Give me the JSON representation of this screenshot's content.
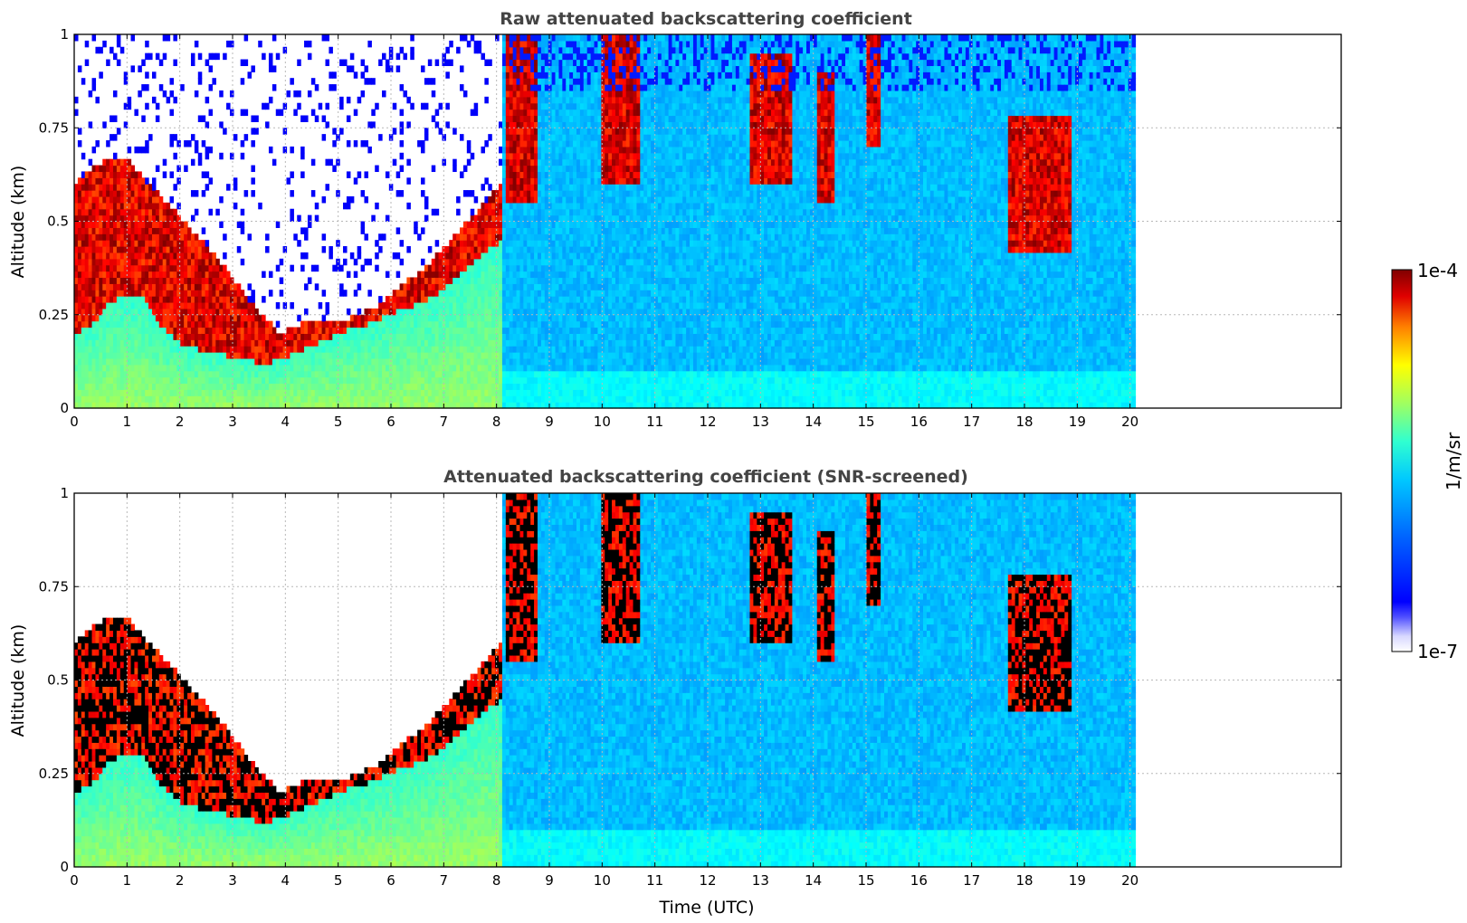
{
  "chart_data": [
    {
      "type": "heatmap",
      "title": "Raw attenuated backscattering coefficient",
      "xlabel": "",
      "ylabel": "Altitude (km)",
      "xlim": [
        0,
        24
      ],
      "ylim": [
        0,
        1
      ],
      "x_ticks": [
        "0",
        "1",
        "2",
        "3",
        "4",
        "5",
        "6",
        "7",
        "8",
        "9",
        "10",
        "11",
        "12",
        "13",
        "14",
        "15",
        "16",
        "17",
        "18",
        "19",
        "20"
      ],
      "y_ticks": [
        "0",
        "0.25",
        "0.5",
        "0.75",
        "1"
      ],
      "data_extent_hours": [
        0,
        20.1
      ],
      "grid": true,
      "screened": false,
      "layer_top_km": [
        0.6,
        0.64,
        0.67,
        0.67,
        0.62,
        0.57,
        0.52,
        0.47,
        0.42,
        0.37,
        0.3,
        0.25,
        0.2,
        0.22,
        0.24,
        0.24,
        0.24,
        0.26,
        0.28,
        0.32,
        0.36,
        0.4,
        0.45,
        0.5,
        0.55,
        0.6
      ],
      "layer_bottom_km": [
        0.2,
        0.22,
        0.28,
        0.3,
        0.3,
        0.22,
        0.18,
        0.16,
        0.15,
        0.14,
        0.13,
        0.12,
        0.13,
        0.15,
        0.17,
        0.19,
        0.21,
        0.22,
        0.24,
        0.26,
        0.28,
        0.3,
        0.34,
        0.38,
        0.42,
        0.45
      ],
      "high_cloud_segments": [
        [
          8.2,
          8.8,
          0.55,
          1.0
        ],
        [
          10.0,
          10.7,
          0.6,
          1.0
        ],
        [
          12.8,
          13.6,
          0.6,
          0.95
        ],
        [
          14.1,
          14.4,
          0.55,
          0.9
        ],
        [
          15.0,
          15.3,
          0.7,
          1.0
        ],
        [
          17.7,
          18.9,
          0.42,
          0.78
        ]
      ]
    },
    {
      "type": "heatmap",
      "title": "Attenuated backscattering coefficient (SNR-screened)",
      "xlabel": "Time (UTC)",
      "ylabel": "Altitude (km)",
      "xlim": [
        0,
        24
      ],
      "ylim": [
        0,
        1
      ],
      "x_ticks": [
        "0",
        "1",
        "2",
        "3",
        "4",
        "5",
        "6",
        "7",
        "8",
        "9",
        "10",
        "11",
        "12",
        "13",
        "14",
        "15",
        "16",
        "17",
        "18",
        "19",
        "20"
      ],
      "y_ticks": [
        "0",
        "0.25",
        "0.5",
        "0.75",
        "1"
      ],
      "data_extent_hours": [
        0,
        20.1
      ],
      "grid": true,
      "screened": true,
      "layer_top_km": [
        0.6,
        0.64,
        0.67,
        0.67,
        0.62,
        0.57,
        0.52,
        0.47,
        0.42,
        0.37,
        0.3,
        0.25,
        0.2,
        0.22,
        0.24,
        0.24,
        0.24,
        0.26,
        0.28,
        0.32,
        0.36,
        0.4,
        0.45,
        0.5,
        0.55,
        0.6
      ],
      "layer_bottom_km": [
        0.2,
        0.22,
        0.28,
        0.3,
        0.3,
        0.22,
        0.18,
        0.16,
        0.15,
        0.14,
        0.13,
        0.12,
        0.13,
        0.15,
        0.17,
        0.19,
        0.21,
        0.22,
        0.24,
        0.26,
        0.28,
        0.3,
        0.34,
        0.38,
        0.42,
        0.45
      ],
      "high_cloud_segments": [
        [
          8.2,
          8.8,
          0.55,
          1.0
        ],
        [
          10.0,
          10.7,
          0.6,
          1.0
        ],
        [
          12.8,
          13.6,
          0.6,
          0.95
        ],
        [
          14.1,
          14.4,
          0.55,
          0.9
        ],
        [
          15.0,
          15.3,
          0.7,
          1.0
        ],
        [
          17.7,
          18.9,
          0.42,
          0.78
        ]
      ]
    }
  ],
  "colorbar": {
    "label": "1/m/sr",
    "max_label": "1e-4",
    "min_label": "1e-7",
    "colormap": "jet",
    "scale": "log"
  },
  "colors": {
    "grid": "#b8b8b8",
    "saturated": "#000000"
  }
}
